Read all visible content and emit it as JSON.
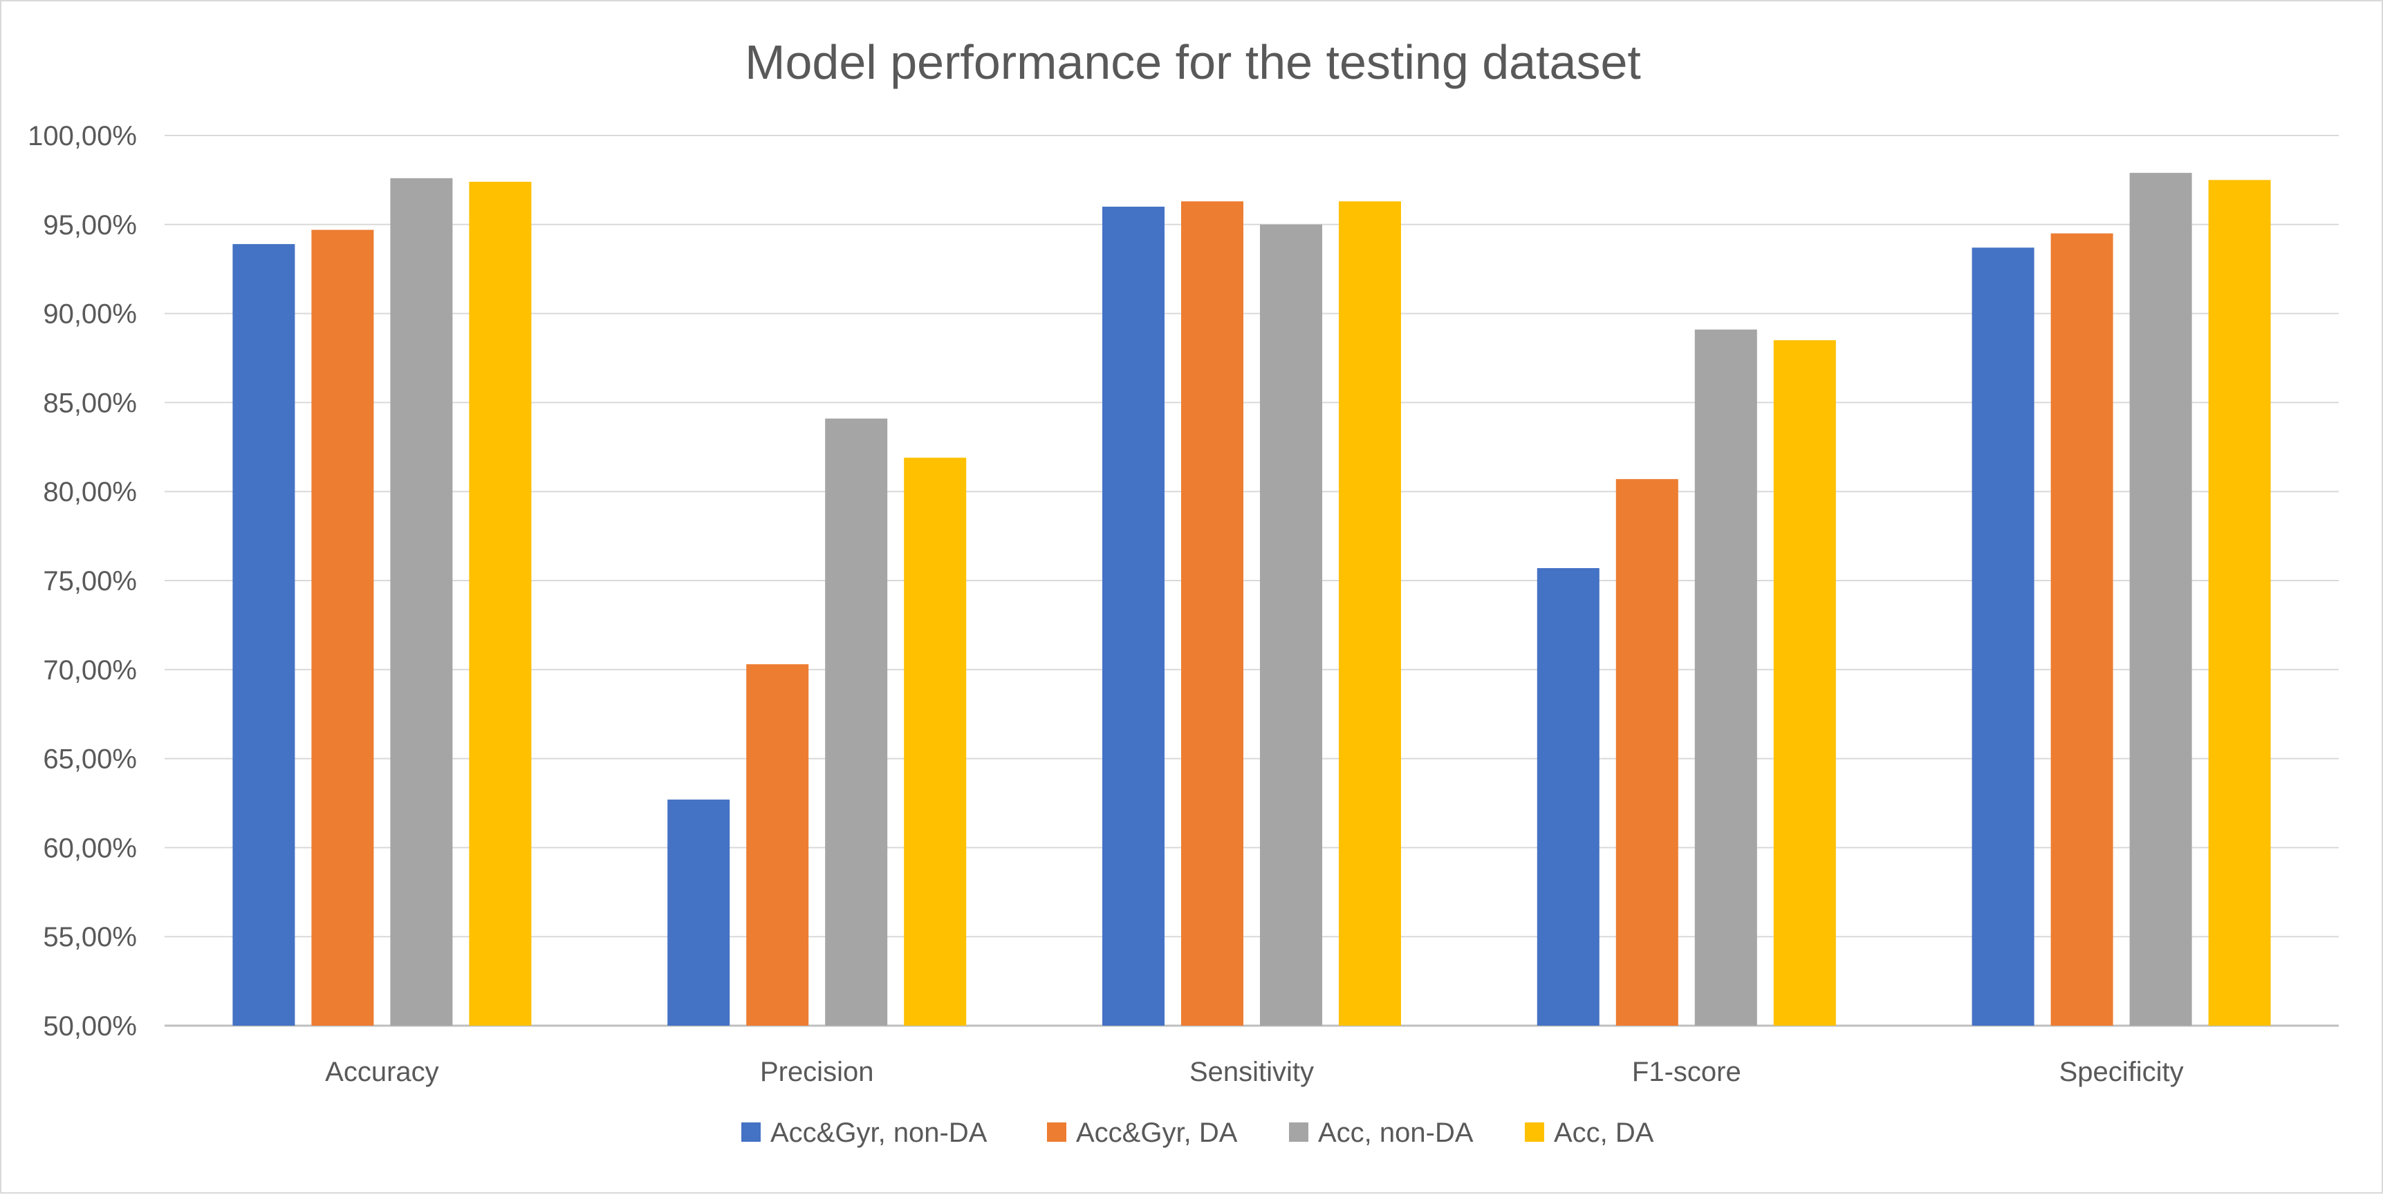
{
  "chart_data": {
    "type": "bar",
    "title": "Model performance for the testing dataset",
    "xlabel": "",
    "ylabel": "",
    "categories": [
      "Accuracy",
      "Precision",
      "Sensitivity",
      "F1-score",
      "Specificity"
    ],
    "ylim": [
      0.5,
      1.0
    ],
    "y_ticks": [
      0.5,
      0.55,
      0.6,
      0.65,
      0.7,
      0.75,
      0.8,
      0.85,
      0.9,
      0.95,
      1.0
    ],
    "y_tick_labels": [
      "50,00%",
      "55,00%",
      "60,00%",
      "65,00%",
      "70,00%",
      "75,00%",
      "80,00%",
      "85,00%",
      "90,00%",
      "95,00%",
      "100,00%"
    ],
    "grid": true,
    "legend_position": "bottom",
    "series": [
      {
        "name": "Acc&Gyr, non-DA",
        "color": "#4472c4",
        "values": [
          0.939,
          0.627,
          0.96,
          0.757,
          0.937
        ]
      },
      {
        "name": "Acc&Gyr, DA",
        "color": "#ed7d31",
        "values": [
          0.947,
          0.703,
          0.963,
          0.807,
          0.945
        ]
      },
      {
        "name": "Acc, non-DA",
        "color": "#a5a5a5",
        "values": [
          0.976,
          0.841,
          0.95,
          0.891,
          0.979
        ]
      },
      {
        "name": "Acc, DA",
        "color": "#ffc000",
        "values": [
          0.974,
          0.819,
          0.963,
          0.885,
          0.975
        ]
      }
    ]
  }
}
